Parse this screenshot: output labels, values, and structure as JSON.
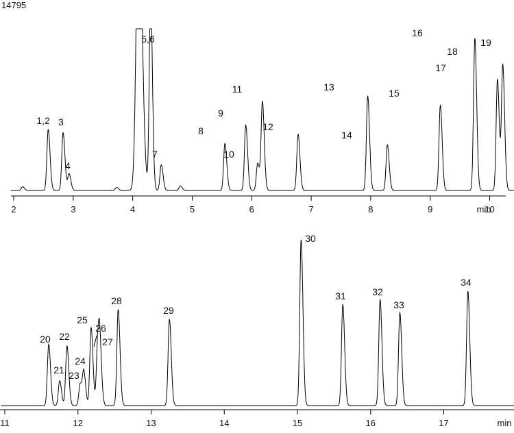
{
  "figure_id": "14795",
  "x_unit": "min",
  "line_color": "#000000",
  "chart_data": [
    {
      "type": "line",
      "xlim": [
        1.95,
        10.3
      ],
      "x_ticks": [
        2,
        3,
        4,
        5,
        6,
        7,
        8,
        9,
        10
      ],
      "xlabel": "min",
      "tail_min": 10.55,
      "peaks": [
        {
          "label": "",
          "t": 2.15,
          "h": 0.025
        },
        {
          "label": "1,2",
          "t": 2.58,
          "h": 0.4
        },
        {
          "label": "3",
          "t": 2.83,
          "h": 0.38
        },
        {
          "label": "4",
          "t": 2.93,
          "h": 0.11
        },
        {
          "label": "",
          "t": 3.73,
          "h": 0.02
        },
        {
          "label": "",
          "t": 4.1,
          "h": 2.0
        },
        {
          "label": "5,6",
          "t": 4.3,
          "h": 1.3
        },
        {
          "label": "7",
          "t": 4.48,
          "h": 0.17
        },
        {
          "label": "",
          "t": 4.8,
          "h": 0.03
        },
        {
          "label": "8",
          "t": 5.55,
          "h": 0.31
        },
        {
          "label": "9",
          "t": 5.9,
          "h": 0.43
        },
        {
          "label": "10",
          "t": 6.1,
          "h": 0.18
        },
        {
          "label": "11",
          "t": 6.18,
          "h": 0.58
        },
        {
          "label": "12",
          "t": 6.78,
          "h": 0.37
        },
        {
          "label": "13",
          "t": 7.95,
          "h": 0.62
        },
        {
          "label": "14",
          "t": 8.28,
          "h": 0.3
        },
        {
          "label": "15",
          "t": 9.17,
          "h": 0.56
        },
        {
          "label": "16",
          "t": 9.75,
          "h": 1.0
        },
        {
          "label": "17",
          "t": 10.13,
          "h": 0.73
        },
        {
          "label": "18",
          "t": 10.22,
          "h": 0.82
        },
        {
          "label": "19",
          "t": 10.85,
          "h": 0.87
        }
      ]
    },
    {
      "type": "line",
      "xlim": [
        11.0,
        17.95
      ],
      "x_ticks": [
        11,
        12,
        13,
        14,
        15,
        16,
        17
      ],
      "xlabel": "min",
      "peaks": [
        {
          "label": "20",
          "t": 11.6,
          "h": 0.37
        },
        {
          "label": "21",
          "t": 11.75,
          "h": 0.15
        },
        {
          "label": "22",
          "t": 11.85,
          "h": 0.36
        },
        {
          "label": "23",
          "t": 12.03,
          "h": 0.13
        },
        {
          "label": "24",
          "t": 12.08,
          "h": 0.2
        },
        {
          "label": "25",
          "t": 12.18,
          "h": 0.47
        },
        {
          "label": "26",
          "t": 12.27,
          "h": 0.37
        },
        {
          "label": "27",
          "t": 12.3,
          "h": 0.3
        },
        {
          "label": "28",
          "t": 12.55,
          "h": 0.58
        },
        {
          "label": "29",
          "t": 13.25,
          "h": 0.52
        },
        {
          "label": "30",
          "t": 15.05,
          "h": 1.0
        },
        {
          "label": "31",
          "t": 15.62,
          "h": 0.61
        },
        {
          "label": "32",
          "t": 16.13,
          "h": 0.64
        },
        {
          "label": "33",
          "t": 16.4,
          "h": 0.56
        },
        {
          "label": "34",
          "t": 17.33,
          "h": 0.69
        }
      ]
    }
  ]
}
